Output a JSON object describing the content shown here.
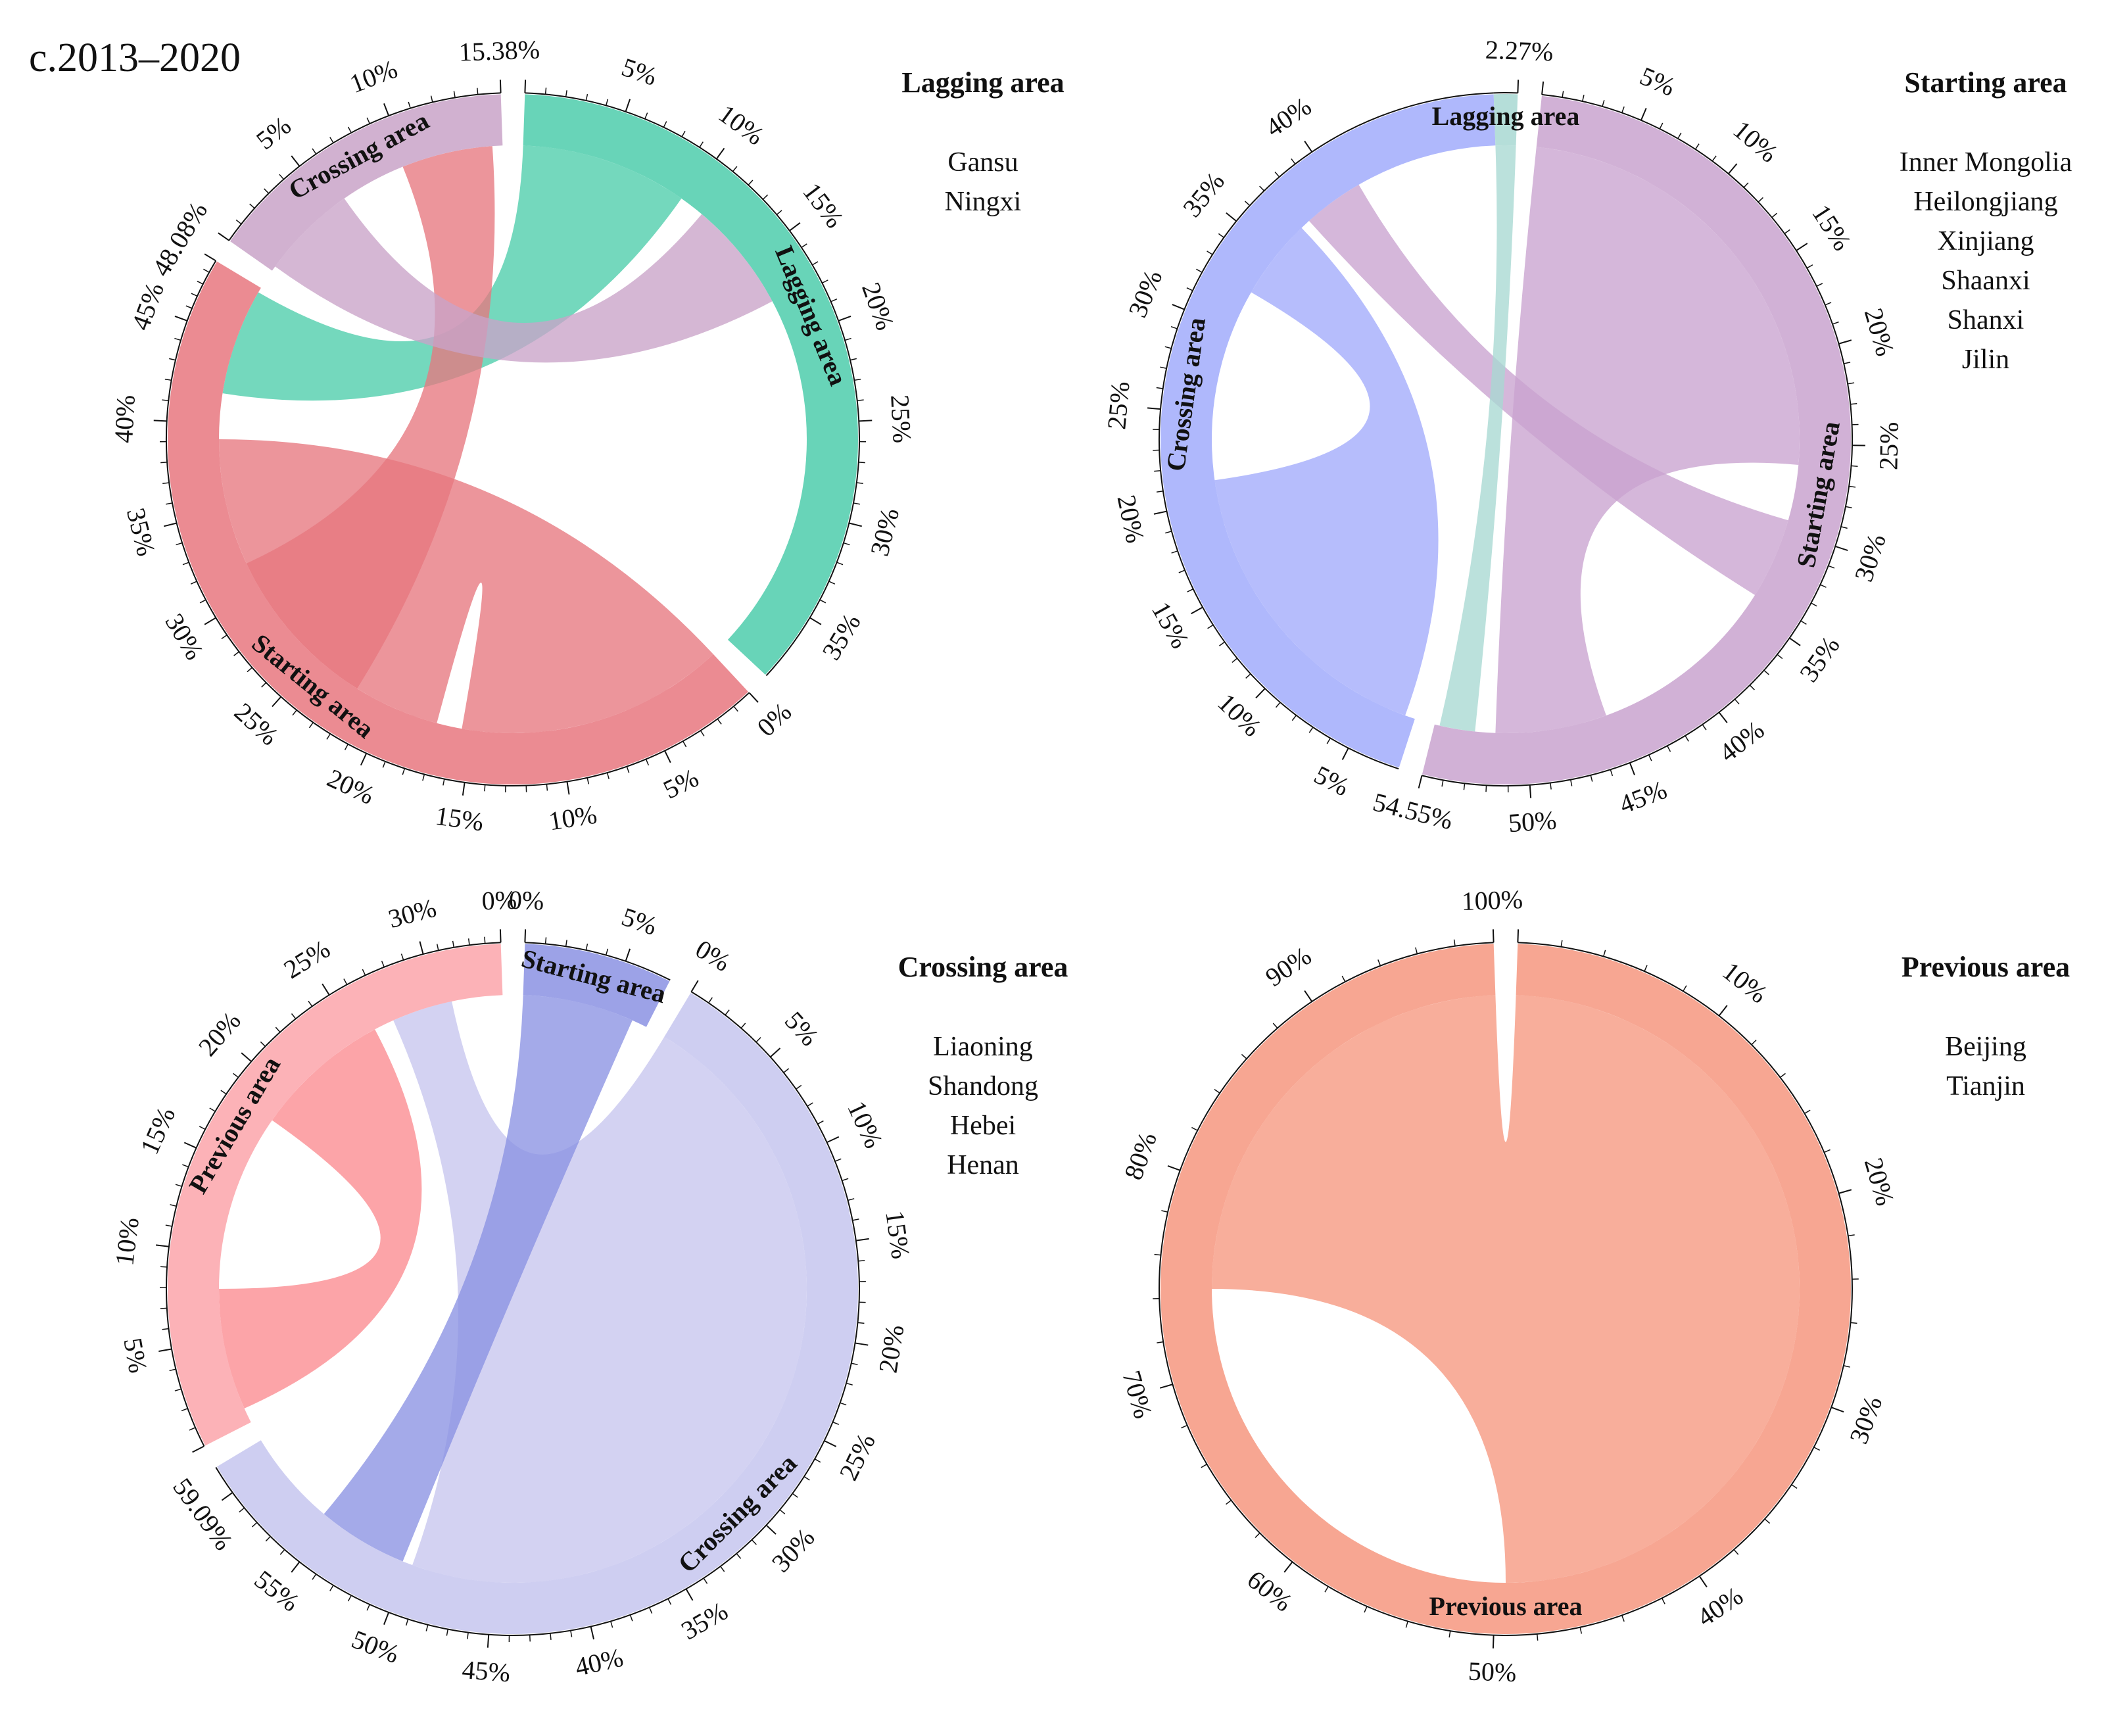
{
  "figure_title": "c.2013–2020",
  "chart_data": [
    {
      "type": "chord",
      "panel": "lagging",
      "legend": {
        "title": "Lagging area",
        "items": [
          "Gansu",
          "Ningxi"
        ]
      },
      "sectors": [
        {
          "name": "Lagging area",
          "color": "#4dcdab",
          "start_deg": 2,
          "end_deg": 133,
          "ticks": [
            {
              "deg": 2,
              "label": ""
            },
            {
              "deg": 19,
              "label": "5%"
            },
            {
              "deg": 36,
              "label": "10%"
            },
            {
              "deg": 53,
              "label": "15%"
            },
            {
              "deg": 70,
              "label": "20%"
            },
            {
              "deg": 87,
              "label": "25%"
            },
            {
              "deg": 104,
              "label": "30%"
            },
            {
              "deg": 121,
              "label": "35%"
            }
          ]
        },
        {
          "name": "Starting area",
          "color": "#e7777f",
          "start_deg": 137,
          "end_deg": 301,
          "ticks": [
            {
              "deg": 137,
              "label": "0%"
            },
            {
              "deg": 154,
              "label": "5%"
            },
            {
              "deg": 171,
              "label": "10%"
            },
            {
              "deg": 188,
              "label": "15%"
            },
            {
              "deg": 205,
              "label": "20%"
            },
            {
              "deg": 222,
              "label": "25%"
            },
            {
              "deg": 239,
              "label": "30%"
            },
            {
              "deg": 256,
              "label": "35%"
            },
            {
              "deg": 273,
              "label": "40%"
            },
            {
              "deg": 290,
              "label": "45%"
            },
            {
              "deg": 301,
              "label": "48.08%"
            }
          ]
        },
        {
          "name": "Crossing area",
          "color": "#c9a3c8",
          "start_deg": 305,
          "end_deg": 358,
          "ticks": [
            {
              "deg": 305,
              "label": ""
            },
            {
              "deg": 322,
              "label": "5%"
            },
            {
              "deg": 339,
              "label": "10%"
            },
            {
              "deg": 358,
              "label": "15.38%"
            }
          ]
        }
      ],
      "flows": [
        {
          "from": 0,
          "to": 1,
          "a0": 2,
          "a1": 35,
          "b0": 279,
          "b1": 300,
          "color": "#4dcdab"
        },
        {
          "from": 1,
          "to": 1,
          "a0": 195,
          "a1": 270,
          "b0": 137,
          "b1": 190,
          "color": "#e7777f"
        },
        {
          "from": 1,
          "to": 2,
          "a0": 212,
          "a1": 245,
          "b0": 338,
          "b1": 356,
          "color": "#e7777f"
        },
        {
          "from": 2,
          "to": 0,
          "a0": 306,
          "a1": 325,
          "b0": 40,
          "b1": 62,
          "color": "#c9a3c8"
        }
      ]
    },
    {
      "type": "chord",
      "panel": "starting",
      "legend": {
        "title": "Starting area",
        "items": [
          "Inner Mongolia",
          "Heilongjiang",
          "Xinjiang",
          "Shaanxi",
          "Shanxi",
          "Jilin"
        ]
      },
      "sectors": [
        {
          "name": "Starting area",
          "color": "#c9a3cf",
          "start_deg": 6,
          "end_deg": 194,
          "ticks": [
            {
              "deg": 6,
              "label": ""
            },
            {
              "deg": 23,
              "label": "5%"
            },
            {
              "deg": 40,
              "label": "10%"
            },
            {
              "deg": 57,
              "label": "15%"
            },
            {
              "deg": 74,
              "label": "20%"
            },
            {
              "deg": 91,
              "label": "25%"
            },
            {
              "deg": 108,
              "label": "30%"
            },
            {
              "deg": 125,
              "label": "35%"
            },
            {
              "deg": 142,
              "label": "40%"
            },
            {
              "deg": 159,
              "label": "45%"
            },
            {
              "deg": 176,
              "label": "50%"
            },
            {
              "deg": 194,
              "label": "54.55%"
            }
          ]
        },
        {
          "name": "Crossing area",
          "color": "#a1abfb",
          "start_deg": 198,
          "end_deg": 358,
          "ticks": [
            {
              "deg": 207,
              "label": "5%"
            },
            {
              "deg": 224,
              "label": "10%"
            },
            {
              "deg": 241,
              "label": "15%"
            },
            {
              "deg": 258,
              "label": "20%"
            },
            {
              "deg": 275,
              "label": "25%"
            },
            {
              "deg": 292,
              "label": "30%"
            },
            {
              "deg": 309,
              "label": "35%"
            },
            {
              "deg": 326,
              "label": "40%"
            }
          ]
        },
        {
          "name": "Lagging area",
          "color": "#a8d8d2",
          "start_deg": 358,
          "end_deg": 2,
          "ticks": [
            {
              "deg": 2,
              "label": "2.27%"
            }
          ]
        }
      ],
      "flows": [
        {
          "from": 0,
          "to": 0,
          "a0": 6,
          "a1": 95,
          "b0": 160,
          "b1": 182,
          "color": "#c9a3cf"
        },
        {
          "from": 1,
          "to": 1,
          "a0": 200,
          "a1": 262,
          "b0": 300,
          "b1": 316,
          "color": "#a1abfb"
        },
        {
          "from": 0,
          "to": 1,
          "a0": 106,
          "a1": 122,
          "b0": 318,
          "b1": 330,
          "color": "#c9a3cf"
        },
        {
          "from": 2,
          "to": 0,
          "a0": 358,
          "a1": 2,
          "b0": 186,
          "b1": 193,
          "color": "#a8d8d2"
        }
      ]
    },
    {
      "type": "chord",
      "panel": "crossing",
      "legend": {
        "title": "Crossing area",
        "items": [
          "Liaoning",
          "Shandong",
          "Hebei",
          "Henan"
        ]
      },
      "sectors": [
        {
          "name": "Starting area",
          "color": "#8b92e3",
          "start_deg": 2,
          "end_deg": 27,
          "ticks": [
            {
              "deg": 2,
              "label": "0%"
            },
            {
              "deg": 19,
              "label": "5%"
            }
          ]
        },
        {
          "name": "Crossing area",
          "color": "#c6c5ee",
          "start_deg": 31,
          "end_deg": 239,
          "ticks": [
            {
              "deg": 31,
              "label": "0%"
            },
            {
              "deg": 48,
              "label": "5%"
            },
            {
              "deg": 65,
              "label": "10%"
            },
            {
              "deg": 82,
              "label": "15%"
            },
            {
              "deg": 99,
              "label": "20%"
            },
            {
              "deg": 116,
              "label": "25%"
            },
            {
              "deg": 133,
              "label": "30%"
            },
            {
              "deg": 150,
              "label": "35%"
            },
            {
              "deg": 167,
              "label": "40%"
            },
            {
              "deg": 184,
              "label": "45%"
            },
            {
              "deg": 201,
              "label": "50%"
            },
            {
              "deg": 218,
              "label": "55%"
            },
            {
              "deg": 234,
              "label": "59.09%"
            }
          ]
        },
        {
          "name": "Previous area",
          "color": "#fba5aa",
          "start_deg": 243,
          "end_deg": 358,
          "ticks": [
            {
              "deg": 243,
              "label": ""
            },
            {
              "deg": 260,
              "label": "5%"
            },
            {
              "deg": 277,
              "label": "10%"
            },
            {
              "deg": 294,
              "label": "15%"
            },
            {
              "deg": 311,
              "label": "20%"
            },
            {
              "deg": 328,
              "label": "25%"
            },
            {
              "deg": 345,
              "label": "30%"
            },
            {
              "deg": 358,
              "label": "0%"
            }
          ]
        }
      ],
      "flows": [
        {
          "from": 1,
          "to": 1,
          "a0": 31,
          "a1": 200,
          "b0": 336,
          "b1": 348,
          "color": "#c6c5ee"
        },
        {
          "from": 0,
          "to": 1,
          "a0": 2,
          "a1": 24,
          "b0": 202,
          "b1": 220,
          "color": "#8b92e3"
        },
        {
          "from": 2,
          "to": 2,
          "a0": 246,
          "a1": 270,
          "b0": 305,
          "b1": 332,
          "color": "#fb8b90"
        }
      ]
    },
    {
      "type": "chord",
      "panel": "previous",
      "legend": {
        "title": "Previous area",
        "items": [
          "Beijing",
          "Tianjin"
        ]
      },
      "sectors": [
        {
          "name": "Previous area",
          "color": "#f6977f",
          "start_deg": 2,
          "end_deg": 358,
          "ticks": [
            {
              "deg": 2,
              "label": ""
            },
            {
              "deg": 38,
              "label": "10%"
            },
            {
              "deg": 74,
              "label": "20%"
            },
            {
              "deg": 110,
              "label": "30%"
            },
            {
              "deg": 146,
              "label": "40%"
            },
            {
              "deg": 182,
              "label": "50%"
            },
            {
              "deg": 218,
              "label": "60%"
            },
            {
              "deg": 254,
              "label": "70%"
            },
            {
              "deg": 290,
              "label": "80%"
            },
            {
              "deg": 326,
              "label": "90%"
            },
            {
              "deg": 358,
              "label": "100%"
            }
          ]
        }
      ],
      "flows": [
        {
          "from": 0,
          "to": 0,
          "a0": 2,
          "a1": 180,
          "b0": 270,
          "b1": 358,
          "color": "#f6977f"
        }
      ]
    }
  ]
}
